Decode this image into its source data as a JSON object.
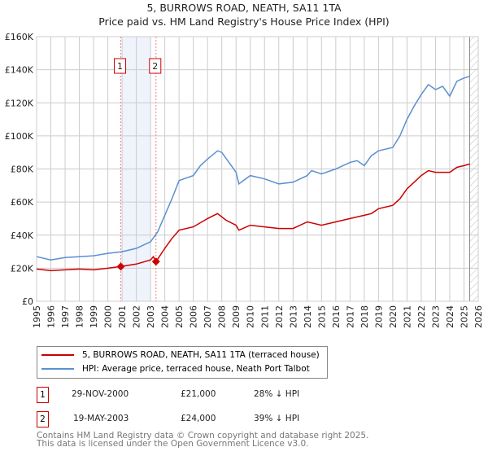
{
  "chart_data": {
    "type": "line",
    "title": "5, BURROWS ROAD, NEATH, SA11 1TA",
    "subtitle": "Price paid vs. HM Land Registry's House Price Index (HPI)",
    "xlim": [
      1995,
      2026
    ],
    "ylim": [
      0,
      160000
    ],
    "x_ticks": [
      "1995",
      "1996",
      "1997",
      "1998",
      "1999",
      "2000",
      "2001",
      "2002",
      "2003",
      "2004",
      "2005",
      "2006",
      "2007",
      "2008",
      "2009",
      "2010",
      "2011",
      "2012",
      "2013",
      "2014",
      "2015",
      "2016",
      "2017",
      "2018",
      "2019",
      "2020",
      "2021",
      "2022",
      "2023",
      "2024",
      "2025",
      "2026"
    ],
    "y_ticks": [
      {
        "v": 0,
        "label": "£0"
      },
      {
        "v": 20000,
        "label": "£20K"
      },
      {
        "v": 40000,
        "label": "£40K"
      },
      {
        "v": 60000,
        "label": "£60K"
      },
      {
        "v": 80000,
        "label": "£80K"
      },
      {
        "v": 100000,
        "label": "£100K"
      },
      {
        "v": 120000,
        "label": "£120K"
      },
      {
        "v": 140000,
        "label": "£140K"
      },
      {
        "v": 160000,
        "label": "£160K"
      }
    ],
    "grid": true,
    "series": [
      {
        "name": "5, BURROWS ROAD, NEATH, SA11 1TA (terraced house)",
        "color": "#cc0000",
        "x": [
          1995,
          1996,
          1997,
          1998,
          1999,
          2000,
          2000.91,
          2002,
          2003,
          2003.2,
          2003.38,
          2004,
          2004.5,
          2005,
          2006,
          2007,
          2007.7,
          2008.3,
          2009,
          2009.2,
          2010,
          2011,
          2012,
          2013,
          2014,
          2015,
          2016,
          2017,
          2018,
          2018.5,
          2019,
          2020,
          2020.5,
          2021,
          2021.5,
          2022,
          2022.5,
          2023,
          2024,
          2024.5,
          2025,
          2025.4
        ],
        "y": [
          19500,
          18500,
          19000,
          19500,
          19000,
          20000,
          21000,
          22500,
          25000,
          27000,
          24000,
          32000,
          38000,
          43000,
          45000,
          50000,
          53000,
          49000,
          46000,
          43000,
          46000,
          45000,
          44000,
          44000,
          48000,
          46000,
          48000,
          50000,
          52000,
          53000,
          56000,
          58000,
          62000,
          68000,
          72000,
          76000,
          79000,
          78000,
          78000,
          81000,
          82000,
          83000
        ]
      },
      {
        "name": "HPI: Average price, terraced house, Neath Port Talbot",
        "color": "#5b8fd0",
        "x": [
          1995,
          1996,
          1997,
          1998,
          1999,
          2000,
          2001,
          2002,
          2003,
          2003.5,
          2004,
          2004.5,
          2005,
          2006,
          2006.5,
          2007,
          2007.7,
          2008,
          2008.5,
          2009,
          2009.2,
          2010,
          2011,
          2012,
          2013,
          2014,
          2014.3,
          2015,
          2016,
          2017,
          2017.5,
          2018,
          2018.5,
          2019,
          2020,
          2020.5,
          2021,
          2021.5,
          2022,
          2022.5,
          2023,
          2023.5,
          2024,
          2024.5,
          2025,
          2025.4
        ],
        "y": [
          27000,
          25000,
          26500,
          27000,
          27500,
          29000,
          30000,
          32000,
          36000,
          42000,
          52000,
          62000,
          73000,
          76000,
          82000,
          86000,
          91000,
          90000,
          84000,
          78000,
          71000,
          76000,
          74000,
          71000,
          72000,
          76000,
          79000,
          77000,
          80000,
          84000,
          85000,
          82000,
          88000,
          91000,
          93000,
          100000,
          110000,
          118000,
          125000,
          131000,
          128000,
          130000,
          124000,
          133000,
          135000,
          136000
        ]
      }
    ],
    "sales": [
      {
        "id": "1",
        "x": 2000.91,
        "y": 21000
      },
      {
        "id": "2",
        "x": 2003.38,
        "y": 24000
      }
    ],
    "legend_placement": "bottom"
  },
  "legend": [
    "5, BURROWS ROAD, NEATH, SA11 1TA (terraced house)",
    "HPI: Average price, terraced house, Neath Port Talbot"
  ],
  "transactions": [
    {
      "id": "1",
      "date": "29-NOV-2000",
      "price": "£21,000",
      "hpi": "28% ↓ HPI"
    },
    {
      "id": "2",
      "date": "19-MAY-2003",
      "price": "£24,000",
      "hpi": "39% ↓ HPI"
    }
  ],
  "footer": [
    "Contains HM Land Registry data © Crown copyright and database right 2025.",
    "This data is licensed under the Open Government Licence v3.0."
  ]
}
